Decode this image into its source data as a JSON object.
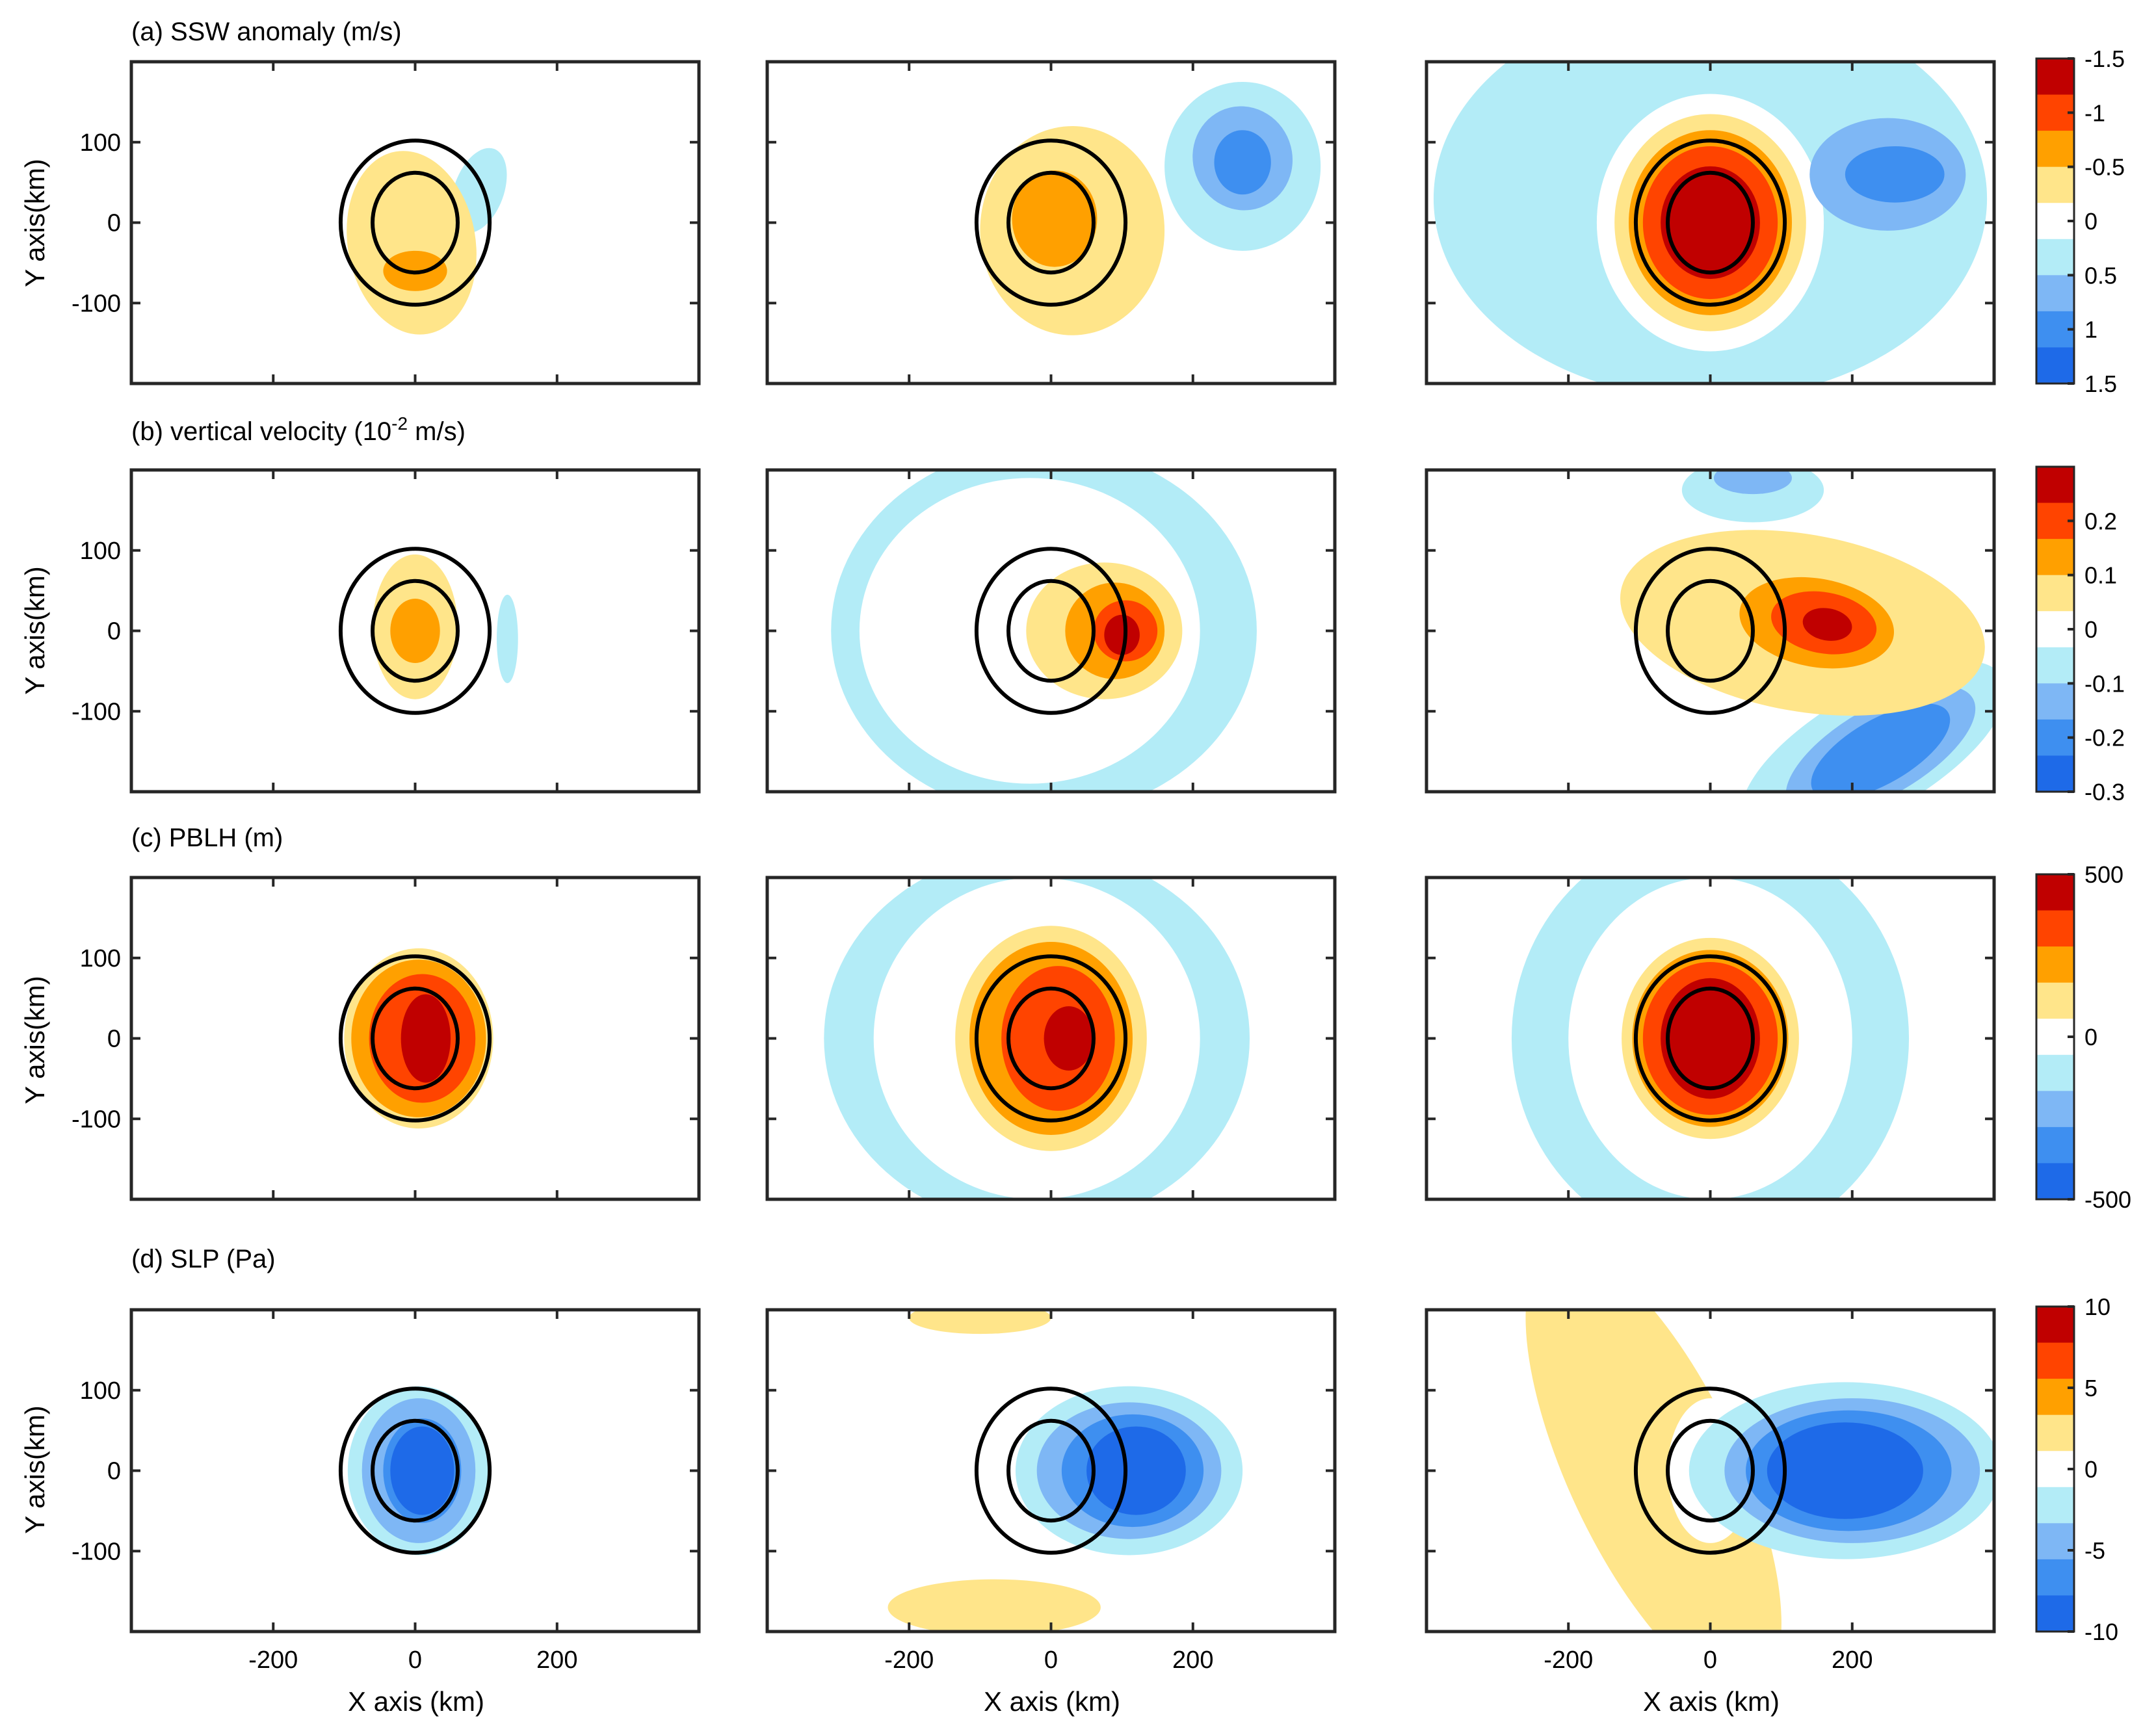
{
  "chart_data": {
    "type": "heatmap",
    "title": "",
    "xlabel": "X axis (km)",
    "ylabel": "Y axis(km)",
    "xlim": [
      -400,
      400
    ],
    "ylim": [
      -200,
      200
    ],
    "xticks": [
      -200,
      0,
      200
    ],
    "yticks": [
      100,
      0,
      -100
    ],
    "circle_radii_km": [
      {
        "rx": 60,
        "ry": 62
      },
      {
        "rx": 105,
        "ry": 102
      }
    ],
    "palette": [
      "#1e6ae8",
      "#3e8ff0",
      "#7eb7f5",
      "#b3ecf7",
      "#ffffff",
      "#ffe58a",
      "#ffa000",
      "#ff4400",
      "#c00000"
    ],
    "rows": [
      {
        "title": "(a) SSW anomaly (m/s)",
        "colorbar": {
          "labels": [
            "1.5",
            "1",
            "0.5",
            "0",
            "-0.5",
            "-1",
            "-1.5"
          ],
          "levels": [
            -1.5,
            -1,
            -0.5,
            0,
            0.5,
            1,
            1.5
          ]
        },
        "panels": [
          {
            "features": [
              {
                "cx": 90,
                "cy": 40,
                "rx": 35,
                "ry": 55,
                "level": -1,
                "rot": 20
              },
              {
                "cx": -5,
                "cy": -25,
                "rx": 90,
                "ry": 115,
                "level": 1,
                "rot": -10
              },
              {
                "cx": 0,
                "cy": -60,
                "rx": 45,
                "ry": 25,
                "level": 2,
                "rot": 0
              }
            ]
          },
          {
            "features": [
              {
                "cx": 270,
                "cy": 70,
                "rx": 110,
                "ry": 105,
                "level": -1,
                "rot": 0
              },
              {
                "cx": 270,
                "cy": 80,
                "rx": 70,
                "ry": 65,
                "level": -2,
                "rot": -20
              },
              {
                "cx": 270,
                "cy": 75,
                "rx": 40,
                "ry": 40,
                "level": -3,
                "rot": 0
              },
              {
                "cx": 30,
                "cy": -10,
                "rx": 130,
                "ry": 130,
                "level": 1,
                "rot": 0
              },
              {
                "cx": 5,
                "cy": 5,
                "rx": 60,
                "ry": 60,
                "level": 2,
                "rot": 0
              }
            ]
          },
          {
            "features": [
              {
                "cx": 0,
                "cy": 30,
                "rx": 390,
                "ry": 250,
                "level": -1,
                "rot": 0
              },
              {
                "cx": 0,
                "cy": 0,
                "rx": 160,
                "ry": 160,
                "level": 0,
                "rot": 0
              },
              {
                "cx": 250,
                "cy": 60,
                "rx": 110,
                "ry": 70,
                "level": -2,
                "rot": 0
              },
              {
                "cx": 260,
                "cy": 60,
                "rx": 70,
                "ry": 35,
                "level": -3,
                "rot": 0
              },
              {
                "cx": 0,
                "cy": 0,
                "rx": 135,
                "ry": 135,
                "level": 1,
                "rot": 0
              },
              {
                "cx": 0,
                "cy": 0,
                "rx": 115,
                "ry": 115,
                "level": 2,
                "rot": 0
              },
              {
                "cx": 0,
                "cy": 0,
                "rx": 95,
                "ry": 95,
                "level": 3,
                "rot": 0
              },
              {
                "cx": 0,
                "cy": 0,
                "rx": 70,
                "ry": 70,
                "level": 4,
                "rot": 0
              }
            ]
          }
        ]
      },
      {
        "title": "(b) vertical velocity (10",
        "title_sup": "-2",
        "title_end": " m/s)",
        "colorbar": {
          "labels": [
            "0.2",
            "0.1",
            "0",
            "-0.1",
            "-0.2",
            "-0.3"
          ],
          "levels": [
            0.2,
            0.1,
            0,
            -0.1,
            -0.2,
            -0.3
          ]
        },
        "panels": [
          {
            "features": [
              {
                "cx": 130,
                "cy": -10,
                "rx": 15,
                "ry": 55,
                "level": -1,
                "rot": 0
              },
              {
                "cx": 0,
                "cy": 5,
                "rx": 60,
                "ry": 90,
                "level": 1,
                "rot": 0
              },
              {
                "cx": 0,
                "cy": 0,
                "rx": 35,
                "ry": 40,
                "level": 2,
                "rot": 0
              }
            ]
          },
          {
            "features": [
              {
                "cx": -10,
                "cy": 0,
                "rx": 300,
                "ry": 230,
                "level": -1,
                "rot": 0
              },
              {
                "cx": -30,
                "cy": 0,
                "rx": 240,
                "ry": 190,
                "level": 0,
                "rot": 0
              },
              {
                "cx": 75,
                "cy": 0,
                "rx": 110,
                "ry": 85,
                "level": 1,
                "rot": 0
              },
              {
                "cx": 90,
                "cy": 0,
                "rx": 70,
                "ry": 60,
                "level": 2,
                "rot": 0
              },
              {
                "cx": 105,
                "cy": 0,
                "rx": 45,
                "ry": 38,
                "level": 3,
                "rot": 0
              },
              {
                "cx": 100,
                "cy": -5,
                "rx": 25,
                "ry": 25,
                "level": 4,
                "rot": 0
              }
            ]
          },
          {
            "features": [
              {
                "cx": 230,
                "cy": -150,
                "rx": 210,
                "ry": 75,
                "level": -1,
                "rot": -30
              },
              {
                "cx": 240,
                "cy": -150,
                "rx": 150,
                "ry": 55,
                "level": -2,
                "rot": -30
              },
              {
                "cx": 240,
                "cy": -150,
                "rx": 110,
                "ry": 40,
                "level": -3,
                "rot": -30
              },
              {
                "cx": 60,
                "cy": 175,
                "rx": 100,
                "ry": 40,
                "level": -1,
                "rot": 0
              },
              {
                "cx": 60,
                "cy": 190,
                "rx": 55,
                "ry": 20,
                "level": -2,
                "rot": 0
              },
              {
                "cx": 130,
                "cy": 10,
                "rx": 260,
                "ry": 110,
                "level": 1,
                "rot": 10
              },
              {
                "cx": 150,
                "cy": 10,
                "rx": 110,
                "ry": 55,
                "level": 2,
                "rot": 10
              },
              {
                "cx": 160,
                "cy": 10,
                "rx": 75,
                "ry": 38,
                "level": 3,
                "rot": 10
              },
              {
                "cx": 165,
                "cy": 8,
                "rx": 35,
                "ry": 20,
                "level": 4,
                "rot": 10
              }
            ]
          }
        ]
      },
      {
        "title": "(c) PBLH (m)",
        "colorbar": {
          "labels": [
            "500",
            "0",
            "-500"
          ],
          "levels": [
            500,
            0,
            -500
          ]
        },
        "panels": [
          {
            "features": [
              {
                "cx": 5,
                "cy": 0,
                "rx": 105,
                "ry": 112,
                "level": 1,
                "rot": 0
              },
              {
                "cx": 5,
                "cy": 0,
                "rx": 95,
                "ry": 98,
                "level": 2,
                "rot": 0
              },
              {
                "cx": 10,
                "cy": 0,
                "rx": 75,
                "ry": 80,
                "level": 3,
                "rot": 0
              },
              {
                "cx": 15,
                "cy": 0,
                "rx": 35,
                "ry": 55,
                "level": 4,
                "rot": 0
              }
            ]
          },
          {
            "features": [
              {
                "cx": -20,
                "cy": 0,
                "rx": 300,
                "ry": 235,
                "level": -1,
                "rot": 0
              },
              {
                "cx": -20,
                "cy": 0,
                "rx": 230,
                "ry": 200,
                "level": 0,
                "rot": 0
              },
              {
                "cx": 0,
                "cy": 0,
                "rx": 135,
                "ry": 140,
                "level": 1,
                "rot": 0
              },
              {
                "cx": 0,
                "cy": 0,
                "rx": 115,
                "ry": 120,
                "level": 2,
                "rot": 0
              },
              {
                "cx": 10,
                "cy": 0,
                "rx": 80,
                "ry": 90,
                "level": 3,
                "rot": 0
              },
              {
                "cx": 25,
                "cy": 0,
                "rx": 35,
                "ry": 40,
                "level": 4,
                "rot": 0
              }
            ]
          },
          {
            "features": [
              {
                "cx": 0,
                "cy": 0,
                "rx": 280,
                "ry": 260,
                "level": -1,
                "rot": 0
              },
              {
                "cx": 0,
                "cy": 0,
                "rx": 200,
                "ry": 200,
                "level": 0,
                "rot": 0
              },
              {
                "cx": 0,
                "cy": 0,
                "rx": 125,
                "ry": 125,
                "level": 1,
                "rot": 0
              },
              {
                "cx": 0,
                "cy": 0,
                "rx": 110,
                "ry": 110,
                "level": 2,
                "rot": 0
              },
              {
                "cx": 0,
                "cy": 0,
                "rx": 95,
                "ry": 95,
                "level": 3,
                "rot": 0
              },
              {
                "cx": 0,
                "cy": 0,
                "rx": 70,
                "ry": 75,
                "level": 4,
                "rot": 0
              }
            ]
          }
        ]
      },
      {
        "title": "(d) SLP (Pa)",
        "colorbar": {
          "labels": [
            "10",
            "5",
            "0",
            "-5",
            "-10"
          ],
          "levels": [
            10,
            5,
            0,
            -5,
            -10
          ]
        },
        "panels": [
          {
            "features": [
              {
                "cx": 5,
                "cy": 0,
                "rx": 100,
                "ry": 105,
                "level": -1,
                "rot": 0
              },
              {
                "cx": 5,
                "cy": 0,
                "rx": 80,
                "ry": 90,
                "level": -2,
                "rot": 0
              },
              {
                "cx": 10,
                "cy": 0,
                "rx": 55,
                "ry": 65,
                "level": -3,
                "rot": 0
              },
              {
                "cx": 10,
                "cy": 0,
                "rx": 45,
                "ry": 55,
                "level": -4,
                "rot": 0
              }
            ]
          },
          {
            "features": [
              {
                "cx": -100,
                "cy": 190,
                "rx": 100,
                "ry": 20,
                "level": 1,
                "rot": 0
              },
              {
                "cx": -80,
                "cy": -170,
                "rx": 150,
                "ry": 35,
                "level": 1,
                "rot": 0
              },
              {
                "cx": 110,
                "cy": 0,
                "rx": 160,
                "ry": 105,
                "level": -1,
                "rot": 0
              },
              {
                "cx": 110,
                "cy": 0,
                "rx": 130,
                "ry": 85,
                "level": -2,
                "rot": 0
              },
              {
                "cx": 115,
                "cy": 0,
                "rx": 100,
                "ry": 70,
                "level": -3,
                "rot": 0
              },
              {
                "cx": 120,
                "cy": 0,
                "rx": 70,
                "ry": 55,
                "level": -4,
                "rot": 0
              }
            ]
          },
          {
            "features": [
              {
                "cx": -80,
                "cy": 0,
                "rx": 120,
                "ry": 300,
                "level": 1,
                "rot": -25
              },
              {
                "cx": 0,
                "cy": 0,
                "rx": 60,
                "ry": 90,
                "level": 0,
                "rot": 0
              },
              {
                "cx": 190,
                "cy": 0,
                "rx": 220,
                "ry": 110,
                "level": -1,
                "rot": 0
              },
              {
                "cx": 200,
                "cy": 0,
                "rx": 180,
                "ry": 90,
                "level": -2,
                "rot": 0
              },
              {
                "cx": 195,
                "cy": 0,
                "rx": 145,
                "ry": 75,
                "level": -3,
                "rot": 0
              },
              {
                "cx": 190,
                "cy": 0,
                "rx": 110,
                "ry": 60,
                "level": -4,
                "rot": 0
              }
            ]
          }
        ]
      }
    ]
  }
}
